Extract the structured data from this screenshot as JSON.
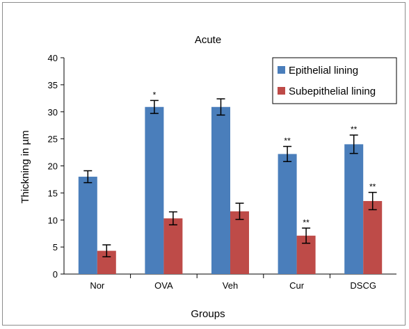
{
  "chart_data": {
    "type": "bar",
    "title": "Acute",
    "xlabel": "Groups",
    "ylabel": "Thickning in µm",
    "ylim": [
      0,
      40
    ],
    "yticks": [
      0,
      5,
      10,
      15,
      20,
      25,
      30,
      35,
      40
    ],
    "categories": [
      "Nor",
      "OVA",
      "Veh",
      "Cur",
      "DSCG"
    ],
    "grid": false,
    "legend_position": "top-right",
    "series": [
      {
        "name": "Epithelial lining",
        "color": "#4a7ebb",
        "values": [
          18.0,
          30.9,
          30.9,
          22.2,
          24.0
        ],
        "errors": [
          1.1,
          1.2,
          1.5,
          1.4,
          1.7
        ],
        "annotations": [
          "",
          "*",
          "",
          "**",
          "**"
        ]
      },
      {
        "name": "Subepithelial lining",
        "color": "#be4b48",
        "values": [
          4.3,
          10.3,
          11.6,
          7.1,
          13.5
        ],
        "errors": [
          1.1,
          1.2,
          1.5,
          1.4,
          1.6
        ],
        "annotations": [
          "",
          "",
          "",
          "**",
          "**"
        ]
      }
    ]
  }
}
